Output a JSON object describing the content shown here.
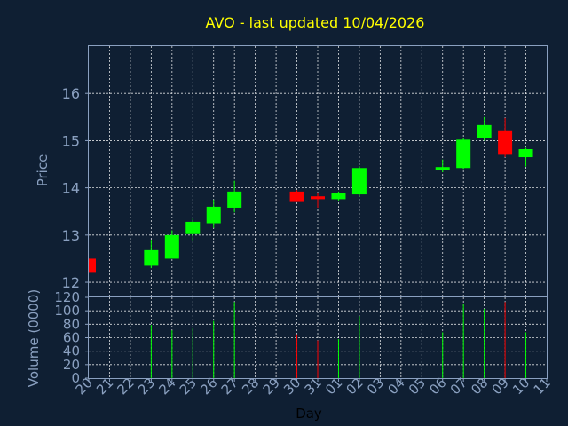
{
  "chart_data": {
    "type": "candlestick",
    "title": "AVO - last updated 10/04/2026",
    "xlabel": "Day",
    "price_ylabel": "Price",
    "volume_ylabel": "Volume (0000)",
    "price_ylim": [
      11.7,
      17.0
    ],
    "price_yticks": [
      "12",
      "13",
      "14",
      "15",
      "16"
    ],
    "volume_ylim": [
      0,
      120
    ],
    "volume_yticks": [
      "0",
      "20",
      "40",
      "60",
      "80",
      "100",
      "120"
    ],
    "x_ticks": [
      "20",
      "21",
      "22",
      "23",
      "24",
      "25",
      "26",
      "27",
      "28",
      "29",
      "30",
      "31",
      "01",
      "02",
      "03",
      "04",
      "05",
      "06",
      "07",
      "08",
      "09",
      "10",
      "11"
    ],
    "up_color": "#00ff00",
    "down_color": "#ff0000",
    "candles": [
      {
        "day": "20",
        "open": 12.5,
        "high": 12.5,
        "low": 12.2,
        "close": 12.2,
        "volume": 0
      },
      {
        "day": "23",
        "open": 12.35,
        "high": 12.9,
        "low": 12.3,
        "close": 12.68,
        "volume": 79
      },
      {
        "day": "24",
        "open": 12.5,
        "high": 13.1,
        "low": 12.5,
        "close": 13.0,
        "volume": 71
      },
      {
        "day": "25",
        "open": 13.02,
        "high": 13.35,
        "low": 12.88,
        "close": 13.28,
        "volume": 74
      },
      {
        "day": "26",
        "open": 13.25,
        "high": 13.75,
        "low": 13.15,
        "close": 13.6,
        "volume": 85
      },
      {
        "day": "27",
        "open": 13.58,
        "high": 14.15,
        "low": 13.48,
        "close": 13.92,
        "volume": 113
      },
      {
        "day": "30",
        "open": 13.92,
        "high": 13.95,
        "low": 13.7,
        "close": 13.7,
        "volume": 65
      },
      {
        "day": "31",
        "open": 13.82,
        "high": 13.88,
        "low": 13.58,
        "close": 13.76,
        "volume": 56
      },
      {
        "day": "01",
        "open": 13.76,
        "high": 13.92,
        "low": 13.72,
        "close": 13.88,
        "volume": 58
      },
      {
        "day": "02",
        "open": 13.86,
        "high": 14.46,
        "low": 13.82,
        "close": 14.42,
        "volume": 92
      },
      {
        "day": "06",
        "open": 14.38,
        "high": 14.6,
        "low": 14.33,
        "close": 14.44,
        "volume": 68
      },
      {
        "day": "07",
        "open": 14.42,
        "high": 15.05,
        "low": 14.4,
        "close": 15.02,
        "volume": 110
      },
      {
        "day": "08",
        "open": 15.05,
        "high": 15.5,
        "low": 15.0,
        "close": 15.33,
        "volume": 103
      },
      {
        "day": "09",
        "open": 15.2,
        "high": 15.48,
        "low": 14.65,
        "close": 14.7,
        "volume": 113
      },
      {
        "day": "10",
        "open": 14.65,
        "high": 14.85,
        "low": 14.45,
        "close": 14.82,
        "volume": 68
      }
    ]
  }
}
